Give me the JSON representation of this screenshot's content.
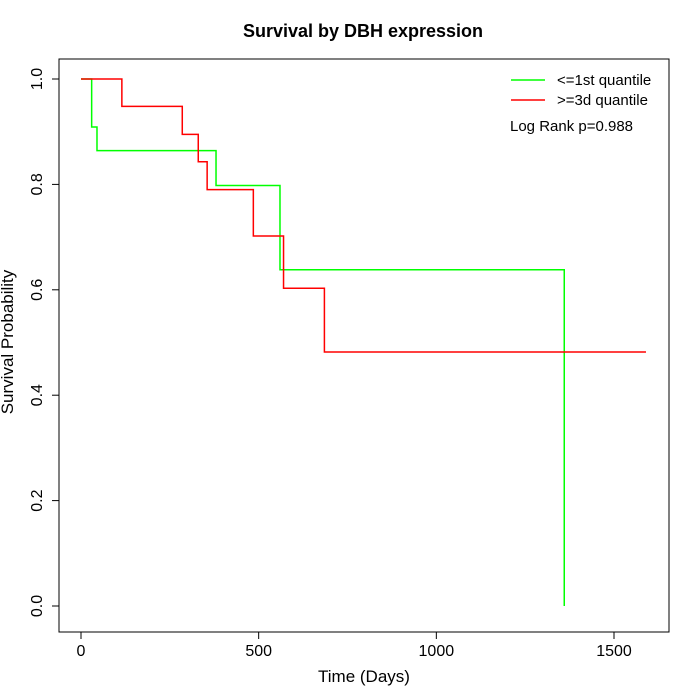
{
  "chart_data": {
    "type": "line",
    "title": "Survival by DBH expression",
    "xlabel": "Time (Days)",
    "ylabel": "Survival Probability",
    "xlim": [
      0,
      1600
    ],
    "ylim": [
      0,
      1.0
    ],
    "x_ticks": [
      0,
      500,
      1000,
      1500
    ],
    "x_tick_labels": [
      "0",
      "500",
      "1000",
      "1500"
    ],
    "y_ticks": [
      0.0,
      0.2,
      0.4,
      0.6,
      0.8,
      1.0
    ],
    "y_tick_labels": [
      "0.0",
      "0.2",
      "0.4",
      "0.6",
      "0.8",
      "1.0"
    ],
    "grid": false,
    "legend_position": "top-right",
    "annotation": "Log Rank p=0.988",
    "series": [
      {
        "name": "<=1st quantile",
        "color": "#00ff00",
        "step": true,
        "x": [
          0,
          25,
          30,
          45,
          380,
          560,
          1360,
          1360
        ],
        "y": [
          1.0,
          1.0,
          0.909,
          0.864,
          0.798,
          0.638,
          0.638,
          0.0
        ]
      },
      {
        "name": ">=3d quantile",
        "color": "#ff0000",
        "step": true,
        "x": [
          0,
          115,
          285,
          330,
          355,
          485,
          570,
          685,
          1590
        ],
        "y": [
          1.0,
          0.948,
          0.895,
          0.843,
          0.79,
          0.702,
          0.603,
          0.482,
          0.482
        ]
      }
    ]
  }
}
